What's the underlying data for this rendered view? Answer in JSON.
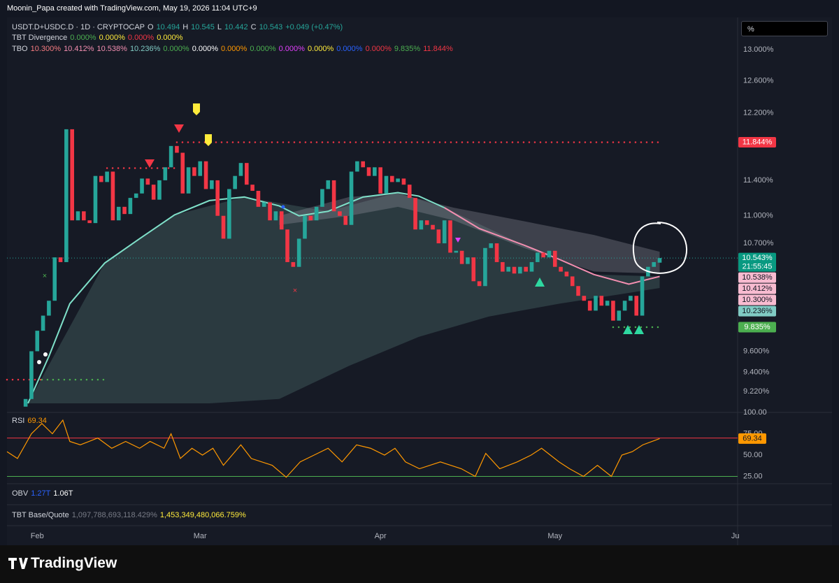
{
  "page": {
    "header": "Moonin_Papa created with TradingView.com, May 19, 2026 11:04 UTC+9",
    "scale_box": "%",
    "brand": "TradingView",
    "legend": [
      [
        {
          "text": "USDT.D+USDC.D · 1D · CRYPTOCAP",
          "color": "#d1d4dc"
        },
        {
          "text": "O",
          "color": "#d1d4dc"
        },
        {
          "text": "10.494",
          "color": "#26a69a"
        },
        {
          "text": "H",
          "color": "#d1d4dc"
        },
        {
          "text": "10.545",
          "color": "#26a69a"
        },
        {
          "text": "L",
          "color": "#d1d4dc"
        },
        {
          "text": "10.442",
          "color": "#26a69a"
        },
        {
          "text": "C",
          "color": "#d1d4dc"
        },
        {
          "text": "10.543",
          "color": "#26a69a"
        },
        {
          "text": "+0.049 (+0.47%)",
          "color": "#26a69a"
        }
      ],
      [
        {
          "text": "TBT Divergence",
          "color": "#d1d4dc"
        },
        {
          "text": "0.000%",
          "color": "#4caf50"
        },
        {
          "text": "0.000%",
          "color": "#ffeb3b"
        },
        {
          "text": "0.000%",
          "color": "#f23645"
        },
        {
          "text": "0.000%",
          "color": "#ffeb3b"
        }
      ],
      [
        {
          "text": "TBO",
          "color": "#d1d4dc"
        },
        {
          "text": "10.300%",
          "color": "#f77c80"
        },
        {
          "text": "10.412%",
          "color": "#f48fb1"
        },
        {
          "text": "10.538%",
          "color": "#f48fb1"
        },
        {
          "text": "10.236%",
          "color": "#80cbc4"
        },
        {
          "text": "0.000%",
          "color": "#4caf50"
        },
        {
          "text": "0.000%",
          "color": "#ffffff"
        },
        {
          "text": "0.000%",
          "color": "#ff9800"
        },
        {
          "text": "0.000%",
          "color": "#4caf50"
        },
        {
          "text": "0.000%",
          "color": "#e040fb"
        },
        {
          "text": "0.000%",
          "color": "#ffeb3b"
        },
        {
          "text": "0.000%",
          "color": "#2962ff"
        },
        {
          "text": "0.000%",
          "color": "#f23645"
        },
        {
          "text": "9.835%",
          "color": "#4caf50"
        },
        {
          "text": "11.844%",
          "color": "#f23645"
        }
      ]
    ],
    "obv": [
      {
        "text": "OBV",
        "color": "#d1d4dc"
      },
      {
        "text": "1.27T",
        "color": "#2962ff"
      },
      {
        "text": "1.06T",
        "color": "#ffffff"
      }
    ],
    "base_quote": [
      {
        "text": "TBT Base/Quote",
        "color": "#d1d4dc"
      },
      {
        "text": "1,097,788,693,118.429%",
        "color": "#787b86"
      },
      {
        "text": "1,453,349,480,066.759%",
        "color": "#ffeb3b"
      }
    ]
  },
  "chart_data": [
    {
      "type": "candlestick",
      "log": true,
      "ylim": [
        9.04,
        13.38
      ],
      "xlim": [
        -3.2,
        122.4
      ],
      "yticks": [
        {
          "value": 13,
          "label": "13.000%"
        },
        {
          "value": 12.6,
          "label": "12.600%"
        },
        {
          "value": 12.2,
          "label": "12.200%"
        },
        {
          "value": 11.4,
          "label": "11.400%"
        },
        {
          "value": 11,
          "label": "11.000%"
        },
        {
          "value": 10.7,
          "label": "10.700%"
        },
        {
          "value": 9.6,
          "label": "9.600%"
        },
        {
          "value": 9.4,
          "label": "9.400%"
        },
        {
          "value": 9.22,
          "label": "9.220%"
        }
      ],
      "xticks": [
        {
          "value": 2,
          "label": "Feb"
        },
        {
          "value": 30,
          "label": "Mar"
        },
        {
          "value": 61,
          "label": "Apr"
        },
        {
          "value": 91,
          "label": "May"
        },
        {
          "value": 122,
          "label": "Ju"
        }
      ],
      "up_color": "#26a69a",
      "down_color": "#f23645",
      "last_line_color": "#26a69a",
      "open": [
        9.08,
        9.15,
        9.6,
        9.8,
        9.95,
        10.1,
        10.55,
        10.5,
        12.0,
        10.95,
        11.05,
        10.95,
        10.92,
        11.45,
        11.38,
        11.5,
        10.95,
        11.1,
        11.02,
        11.2,
        11.25,
        11.42,
        11.35,
        11.18,
        11.4,
        11.55,
        11.8,
        11.72,
        11.25,
        11.55,
        11.45,
        11.62,
        11.3,
        11.4,
        11.0,
        10.75,
        11.3,
        11.45,
        11.6,
        11.35,
        11.28,
        11.1,
        11.15,
        10.95,
        11.05,
        10.85,
        10.5,
        10.45,
        10.75,
        11.0,
        10.95,
        11.1,
        11.3,
        11.4,
        11.05,
        11.0,
        10.9,
        11.5,
        11.62,
        11.55,
        11.45,
        11.55,
        11.25,
        11.45,
        11.38,
        11.42,
        11.35,
        11.2,
        10.85,
        10.95,
        10.9,
        10.85,
        10.7,
        10.95,
        10.6,
        10.62,
        10.48,
        10.55,
        10.3,
        10.25,
        10.65,
        10.7,
        10.5,
        10.4,
        10.45,
        10.38,
        10.45,
        10.4,
        10.5,
        10.6,
        10.55,
        10.62,
        10.45,
        10.4,
        10.35,
        10.25,
        10.15,
        10.1,
        10.0,
        10.15,
        10.05,
        10.1,
        9.9,
        10.0,
        10.1,
        10.15,
        9.95,
        10.35,
        10.45,
        10.494
      ],
      "close": [
        9.15,
        9.6,
        9.8,
        9.95,
        10.1,
        10.55,
        10.5,
        12.0,
        10.95,
        11.05,
        10.95,
        10.92,
        11.45,
        11.38,
        11.5,
        10.95,
        11.1,
        11.02,
        11.2,
        11.25,
        11.42,
        11.35,
        11.18,
        11.4,
        11.55,
        11.8,
        11.72,
        11.25,
        11.55,
        11.45,
        11.62,
        11.3,
        11.4,
        11.0,
        10.75,
        11.3,
        11.45,
        11.6,
        11.35,
        11.28,
        11.1,
        11.15,
        10.95,
        11.05,
        10.85,
        10.5,
        10.45,
        10.75,
        11.0,
        10.95,
        11.1,
        11.3,
        11.4,
        11.05,
        11.0,
        10.9,
        11.5,
        11.62,
        11.55,
        11.45,
        11.55,
        11.25,
        11.45,
        11.38,
        11.42,
        11.35,
        11.2,
        10.85,
        10.95,
        10.9,
        10.85,
        10.7,
        10.95,
        10.6,
        10.62,
        10.48,
        10.55,
        10.3,
        10.25,
        10.65,
        10.7,
        10.5,
        10.4,
        10.45,
        10.38,
        10.45,
        10.4,
        10.5,
        10.6,
        10.55,
        10.62,
        10.45,
        10.4,
        10.35,
        10.25,
        10.15,
        10.1,
        10.0,
        10.15,
        10.05,
        10.1,
        9.9,
        10.0,
        10.1,
        10.15,
        9.95,
        10.35,
        10.45,
        10.5,
        10.543
      ],
      "bands": [
        {
          "color": "rgba(120,175,165,0.22)",
          "upper": {
            "x": [
              0.4,
              13.6,
              25.6,
              37.6,
              52,
              64,
              72,
              85.7,
              97.7,
              109
            ],
            "values": [
              9.11,
              10.49,
              11.01,
              11.21,
              11.05,
              11.26,
              11.09,
              10.68,
              10.37,
              10.35
            ]
          },
          "lower": {
            "x": [
              0.4,
              31.6,
              43.6,
              55.6,
              67.6,
              79.6,
              91.7,
              103.7,
              109
            ],
            "values": [
              9.11,
              9.11,
              9.15,
              9.46,
              9.74,
              9.94,
              10.07,
              10.18,
              10.23
            ]
          }
        },
        {
          "color": "rgba(170,170,180,0.28)",
          "upper": {
            "x": [
              43.6,
              55.6,
              64,
              73.6,
              85.7,
              97.7,
              109
            ],
            "values": [
              11.0,
              11.21,
              11.25,
              11.09,
              10.94,
              10.79,
              10.61
            ]
          },
          "lower": {
            "x": [
              43.6,
              55.6,
              64,
              73.6,
              85.7,
              97.7,
              109
            ],
            "values": [
              10.9,
              11.0,
              11.1,
              10.95,
              10.65,
              10.4,
              10.38
            ]
          }
        }
      ],
      "lines": [
        {
          "color": "#7fe0c9",
          "x": [
            0.4,
            4,
            7.6,
            13.6,
            19.6,
            25.6,
            31.6,
            37.6,
            43.6,
            47,
            52,
            58,
            64,
            67.6,
            72
          ],
          "values": [
            9.11,
            9.55,
            10.07,
            10.49,
            10.75,
            11.01,
            11.17,
            11.21,
            11.11,
            11.0,
            11.05,
            11.21,
            11.26,
            11.22,
            11.09
          ]
        },
        {
          "color": "#f48fb1",
          "x": [
            72,
            78,
            85.7,
            91.7,
            97.7,
            103.7,
            109
          ],
          "values": [
            11.09,
            10.86,
            10.68,
            10.53,
            10.37,
            10.27,
            10.35
          ]
        }
      ],
      "levels": [
        {
          "value": 11.844,
          "from": 26,
          "to": 109,
          "color": "#f23645"
        },
        {
          "value": 11.54,
          "from": 14,
          "to": 25.6,
          "color": "#f23645"
        },
        {
          "value": 9.33,
          "from": -3.2,
          "to": 2.8,
          "color": "#f23645"
        },
        {
          "value": 9.33,
          "from": 2.8,
          "to": 13.6,
          "color": "#4caf50"
        },
        {
          "value": 9.835,
          "from": 101,
          "to": 109,
          "color": "#4caf50"
        }
      ],
      "price_labels": [
        {
          "value": 11.844,
          "label": "11.844%",
          "bg": "#f23645",
          "fg": "#ffffff"
        },
        {
          "value": 10.543,
          "label": "10.543%",
          "sub": "21:55:45",
          "bg": "#089981",
          "fg": "#ffffff"
        },
        {
          "value": 10.538,
          "label": "10.538%",
          "bg": "#f8bbd0",
          "fg": "#131722"
        },
        {
          "value": 10.412,
          "label": "10.412%",
          "bg": "#f8bbd0",
          "fg": "#131722"
        },
        {
          "value": 10.3,
          "label": "10.300%",
          "bg": "#f8bbd0",
          "fg": "#131722"
        },
        {
          "value": 10.236,
          "label": "10.236%",
          "bg": "#80cbc4",
          "fg": "#131722"
        },
        {
          "value": 9.835,
          "label": "9.835%",
          "bg": "#4caf50",
          "fg": "#ffffff"
        }
      ]
    },
    {
      "type": "line",
      "title": "RSI",
      "color": "#ff9800",
      "ylim": [
        16.4,
        100
      ],
      "xlim": [
        -3.2,
        122.4
      ],
      "yticks": [
        {
          "value": 100,
          "label": "100.00"
        },
        {
          "value": 75,
          "label": "75.00"
        },
        {
          "value": 50,
          "label": "50.00"
        },
        {
          "value": 25,
          "label": "25.00"
        }
      ],
      "levels": [
        {
          "value": 70,
          "color": "#f23645"
        },
        {
          "value": 25,
          "color": "#4caf50"
        }
      ],
      "x": [
        -3.2,
        -1.4,
        1,
        2.8,
        4.6,
        6.4,
        7.6,
        9.4,
        12.4,
        14.8,
        17.2,
        19.6,
        21.4,
        23.8,
        25,
        26.6,
        28.6,
        30.4,
        32.2,
        34,
        37,
        38.8,
        42.4,
        44.8,
        47.2,
        49.6,
        52,
        54.4,
        56.9,
        59.3,
        61.7,
        63.5,
        65.3,
        67.7,
        71.3,
        74.9,
        77.3,
        79.1,
        81.5,
        84.5,
        86.9,
        88.7,
        91.7,
        93.5,
        95.9,
        98.3,
        100.7,
        102.5,
        104.3,
        106.1,
        109
      ],
      "values": [
        54,
        46,
        75,
        87,
        75,
        91,
        66,
        62,
        70,
        58,
        66,
        58,
        66,
        58,
        75,
        46,
        58,
        50,
        58,
        38,
        62,
        46,
        38,
        24,
        42,
        50,
        58,
        42,
        62,
        58,
        50,
        58,
        42,
        34,
        42,
        34,
        25,
        52,
        34,
        42,
        50,
        58,
        42,
        34,
        25,
        38,
        25,
        50,
        54,
        62,
        69.34
      ]
    }
  ]
}
